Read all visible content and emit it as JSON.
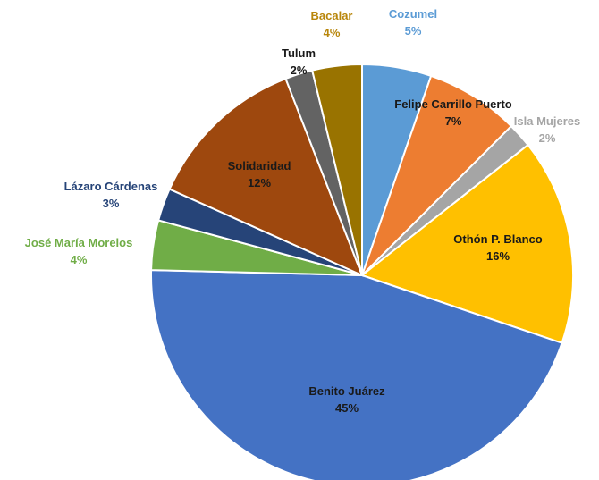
{
  "chart_data": {
    "type": "pie",
    "title": "",
    "slices": [
      {
        "label": "Cozumel",
        "pct_label": "5%",
        "value": 5.3,
        "color": "#5B9BD5",
        "label_color": "#5B9BD5",
        "label_mode": "outside"
      },
      {
        "label": "Felipe Carrillo Puerto",
        "pct_label": "7%",
        "value": 7.2,
        "color": "#ED7D31",
        "label_color": "#1a1a1a",
        "label_mode": "inside"
      },
      {
        "label": "Isla Mujeres",
        "pct_label": "2%",
        "value": 1.9,
        "color": "#A5A5A5",
        "label_color": "#A5A5A5",
        "label_mode": "outside"
      },
      {
        "label": "Othón P. Blanco",
        "pct_label": "16%",
        "value": 15.8,
        "color": "#FFC000",
        "label_color": "#1a1a1a",
        "label_mode": "inside"
      },
      {
        "label": "Benito Juárez",
        "pct_label": "45%",
        "value": 45.2,
        "color": "#4472C4",
        "label_color": "#1a1a1a",
        "label_mode": "inside"
      },
      {
        "label": "José María Morelos",
        "pct_label": "4%",
        "value": 3.8,
        "color": "#70AD47",
        "label_color": "#70AD47",
        "label_mode": "outside"
      },
      {
        "label": "Lázaro Cárdenas",
        "pct_label": "3%",
        "value": 2.5,
        "color": "#264478",
        "label_color": "#264478",
        "label_mode": "outside"
      },
      {
        "label": "Solidaridad",
        "pct_label": "12%",
        "value": 12.4,
        "color": "#9E480E",
        "label_color": "#1a1a1a",
        "label_mode": "inside"
      },
      {
        "label": "Tulum",
        "pct_label": "2%",
        "value": 2.1,
        "color": "#636363",
        "label_color": "#1a1a1a",
        "label_mode": "outside"
      },
      {
        "label": "Bacalar",
        "pct_label": "4%",
        "value": 3.8,
        "color": "#997300",
        "label_color": "#B8860B",
        "label_mode": "outside"
      }
    ]
  }
}
